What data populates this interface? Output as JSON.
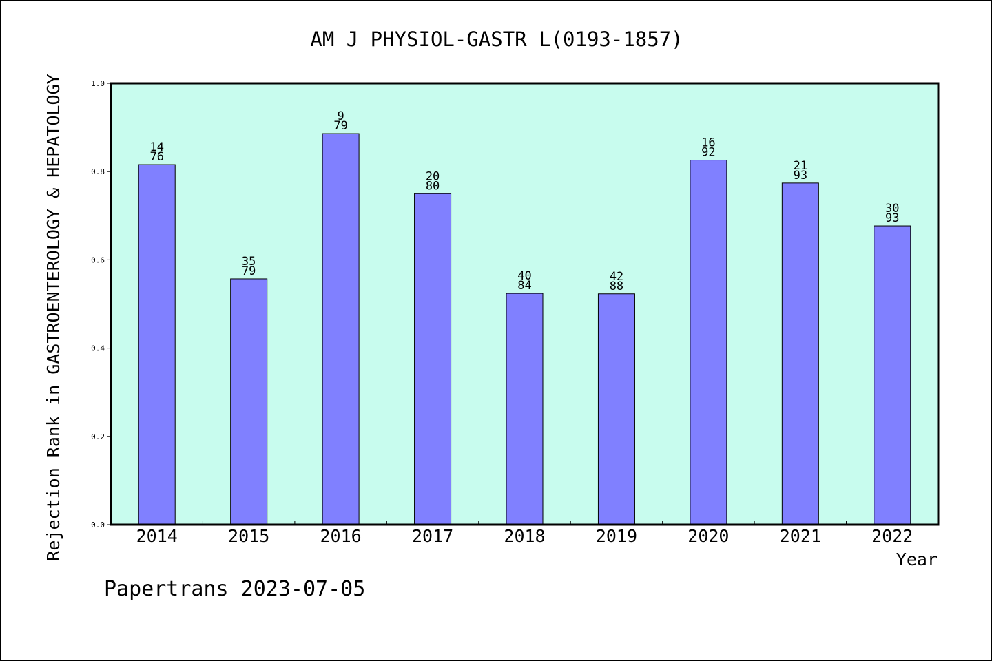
{
  "chart_data": {
    "type": "bar",
    "title": "AM J PHYSIOL-GASTR L(0193-1857)",
    "xlabel": "Year",
    "ylabel": "Rejection Rank in GASTROENTEROLOGY & HEPATOLOGY",
    "ylim": [
      0.0,
      1.0
    ],
    "yticks": [
      "0.0",
      "0.2",
      "0.4",
      "0.6",
      "0.8",
      "1.0"
    ],
    "categories": [
      "2014",
      "2015",
      "2016",
      "2017",
      "2018",
      "2019",
      "2020",
      "2021",
      "2022"
    ],
    "values": [
      0.8158,
      0.557,
      0.886,
      0.75,
      0.524,
      0.523,
      0.826,
      0.774,
      0.677
    ],
    "label_top": [
      "14",
      "35",
      "9",
      "20",
      "40",
      "42",
      "16",
      "21",
      "30"
    ],
    "label_bottom": [
      "76",
      "79",
      "79",
      "80",
      "84",
      "88",
      "92",
      "93",
      "93"
    ],
    "bar_color": "#8080ff",
    "plot_background": "#c8fcee",
    "grid": false,
    "legend": "none"
  },
  "footer": "Papertrans 2023-07-05"
}
